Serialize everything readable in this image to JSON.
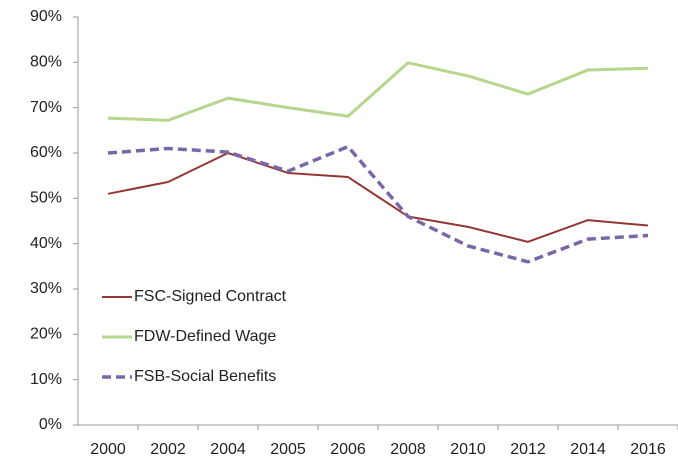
{
  "chart_data": {
    "type": "line",
    "categories": [
      "2000",
      "2002",
      "2004",
      "2005",
      "2006",
      "2008",
      "2010",
      "2012",
      "2014",
      "2016"
    ],
    "series": [
      {
        "name": "FSC-Signed Contract",
        "color": "#943634",
        "dash": false,
        "width": 2,
        "values": [
          51,
          53.6,
          60,
          55.6,
          54.7,
          46,
          43.7,
          40.4,
          45.2,
          44
        ]
      },
      {
        "name": "FDW-Defined Wage",
        "color": "#b5d68c",
        "dash": false,
        "width": 3,
        "values": [
          67.7,
          67.2,
          72.1,
          70,
          68.1,
          79.9,
          77,
          73,
          78.3,
          78.7
        ]
      },
      {
        "name": "FSB-Social Benefits",
        "color": "#7a67a8",
        "dash": true,
        "width": 3.5,
        "values": [
          60,
          61,
          60.2,
          56,
          61.4,
          46,
          39.5,
          36,
          41,
          41.8
        ]
      }
    ],
    "ylim": [
      0,
      90
    ],
    "yticks": [
      {
        "value": 0,
        "label": "0%"
      },
      {
        "value": 10,
        "label": "10%"
      },
      {
        "value": 20,
        "label": "20%"
      },
      {
        "value": 30,
        "label": "30%"
      },
      {
        "value": 40,
        "label": "40%"
      },
      {
        "value": 50,
        "label": "50%"
      },
      {
        "value": 60,
        "label": "60%"
      },
      {
        "value": 70,
        "label": "70%"
      },
      {
        "value": 80,
        "label": "80%"
      },
      {
        "value": 90,
        "label": "90%"
      }
    ],
    "grid": false,
    "legend": "lower left"
  }
}
